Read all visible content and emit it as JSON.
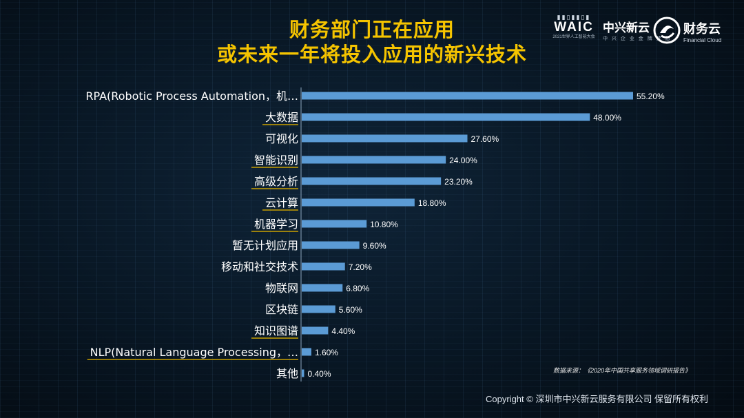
{
  "title": {
    "line1": "财务部门正在应用",
    "line2": "或未来一年将投入应用的新兴技术"
  },
  "logos": {
    "waic": {
      "text": "WAIC",
      "sub": "2021世界人工智能大会"
    },
    "zte": {
      "name": "中兴新云",
      "sub": "中 兴 企 业 金 牌 梦 想"
    },
    "financial_cloud": {
      "name": "财务云",
      "sub": "Financial Cloud"
    }
  },
  "source_note": "数据来源：《2020年中国共享服务领域调研报告》",
  "copyright": "Copyright © 深圳市中兴新云服务有限公司 保留所有权利",
  "colors": {
    "bar": "#5b9bd5",
    "title": "#f5c400",
    "label": "#ffffff",
    "underline": "#c9a000"
  },
  "chart_data": {
    "type": "bar",
    "orientation": "horizontal",
    "title": "财务部门正在应用或未来一年将投入应用的新兴技术",
    "xlabel": "",
    "ylabel": "",
    "value_unit": "%",
    "xlim": [
      0,
      60
    ],
    "grid": false,
    "categories": [
      "RPA(Robotic Process Automation，机…",
      "大数据",
      "可视化",
      "智能识别",
      "高级分析",
      "云计算",
      "机器学习",
      "暂无计划应用",
      "移动和社交技术",
      "物联网",
      "区块链",
      "知识图谱",
      "NLP(Natural Language Processing，…",
      "其他"
    ],
    "values": [
      55.2,
      48.0,
      27.6,
      24.0,
      23.2,
      18.8,
      10.8,
      9.6,
      7.2,
      6.8,
      5.6,
      4.4,
      1.6,
      0.4
    ],
    "data_labels": [
      "55.20%",
      "48.00%",
      "27.60%",
      "24.00%",
      "23.20%",
      "18.80%",
      "10.80%",
      "9.60%",
      "7.20%",
      "6.80%",
      "5.60%",
      "4.40%",
      "1.60%",
      "0.40%"
    ],
    "underlined_categories": [
      1,
      3,
      4,
      5,
      6,
      11,
      12
    ]
  }
}
